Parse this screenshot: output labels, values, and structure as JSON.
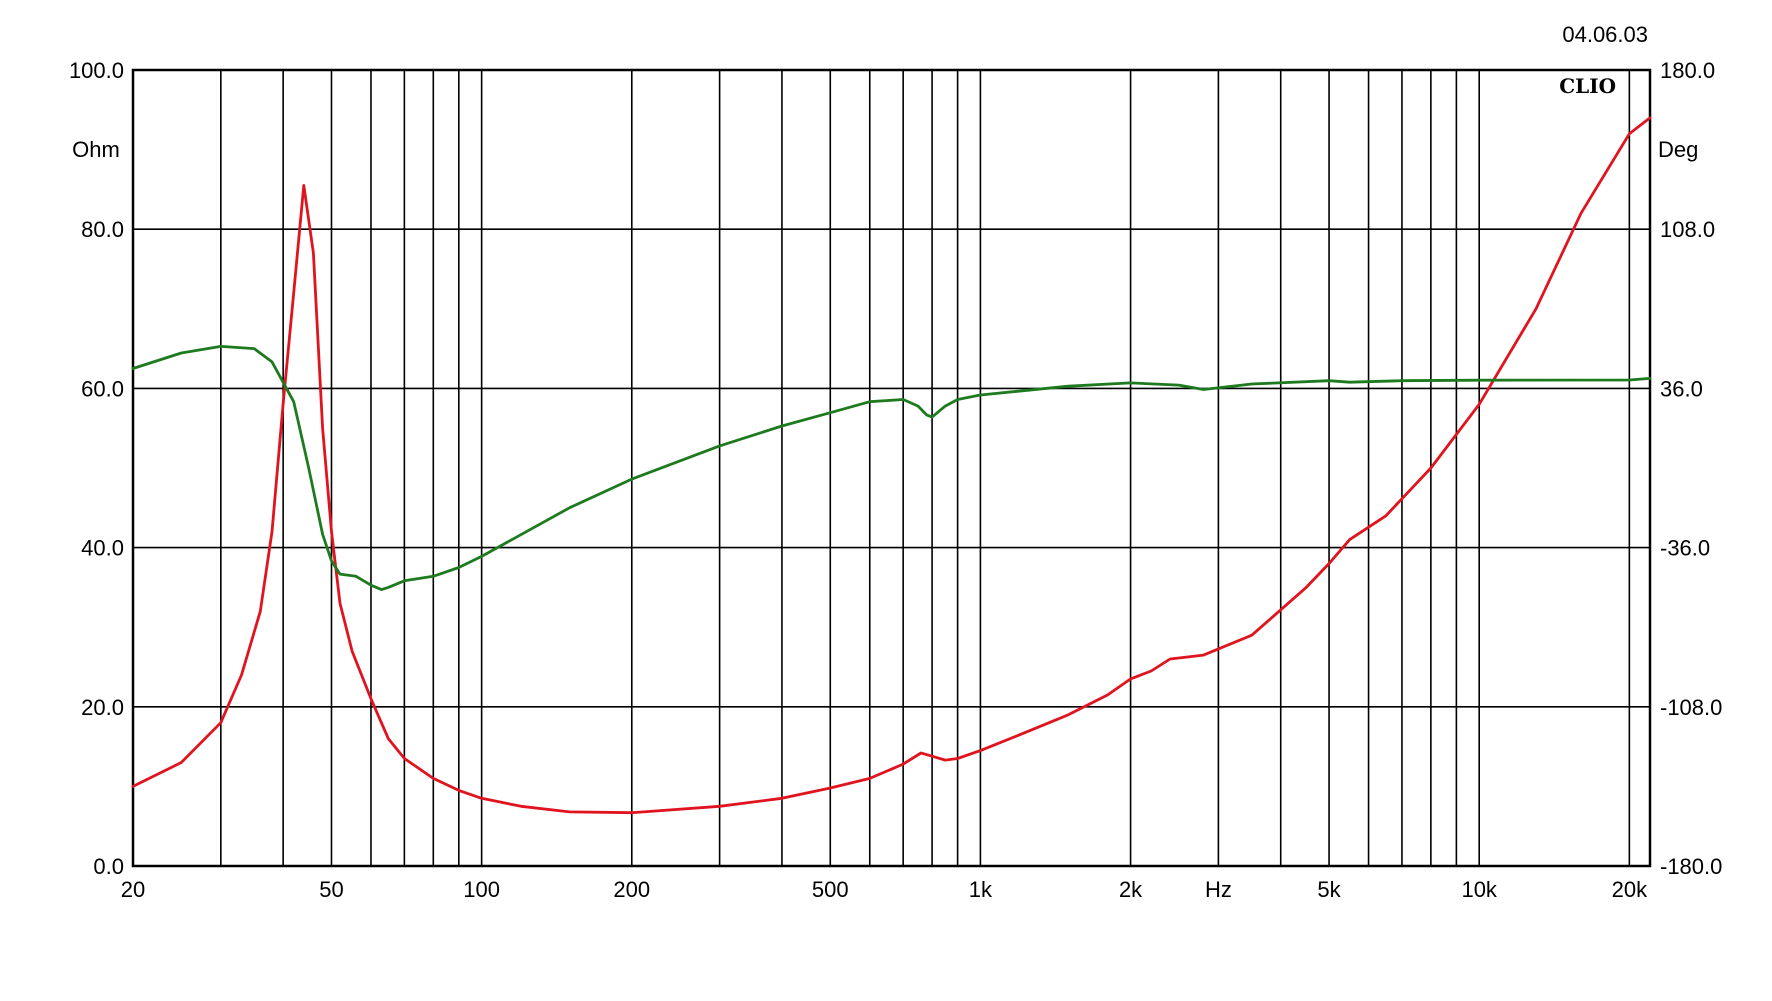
{
  "date": "04.06.03",
  "brand": "CLIO",
  "chart_data": {
    "type": "line",
    "xlabel": "Hz",
    "ylabel_left": "Ohm",
    "ylabel_right": "Deg",
    "x_scale": "log",
    "xlim": [
      20,
      22000
    ],
    "ylim_left": [
      0,
      100
    ],
    "ylim_right": [
      -180,
      180
    ],
    "grid": true,
    "x_ticks": [
      {
        "value": 20,
        "label": "20"
      },
      {
        "value": 50,
        "label": "50"
      },
      {
        "value": 100,
        "label": "100"
      },
      {
        "value": 200,
        "label": "200"
      },
      {
        "value": 500,
        "label": "500"
      },
      {
        "value": 1000,
        "label": "1k"
      },
      {
        "value": 2000,
        "label": "2k"
      },
      {
        "value": 5000,
        "label": "5k"
      },
      {
        "value": 10000,
        "label": "10k"
      },
      {
        "value": 20000,
        "label": "20k"
      }
    ],
    "x_grid": [
      20,
      30,
      40,
      50,
      60,
      70,
      80,
      90,
      100,
      200,
      300,
      400,
      500,
      600,
      700,
      800,
      900,
      1000,
      2000,
      3000,
      4000,
      5000,
      6000,
      7000,
      8000,
      9000,
      10000,
      20000
    ],
    "x_unit_tick": 3000,
    "y_left_ticks": [
      {
        "value": 0,
        "label": "0.0"
      },
      {
        "value": 20,
        "label": "20.0"
      },
      {
        "value": 40,
        "label": "40.0"
      },
      {
        "value": 60,
        "label": "60.0"
      },
      {
        "value": 80,
        "label": "80.0"
      },
      {
        "value": 100,
        "label": "100.0"
      }
    ],
    "y_right_ticks": [
      {
        "value": -180,
        "label": "-180.0"
      },
      {
        "value": -108,
        "label": "-108.0"
      },
      {
        "value": -36,
        "label": "-36.0"
      },
      {
        "value": 36,
        "label": "36.0"
      },
      {
        "value": 108,
        "label": "108.0"
      },
      {
        "value": 180,
        "label": "180.0"
      }
    ],
    "series": [
      {
        "axis": "left",
        "color": "#e0141e",
        "points": [
          [
            20,
            10
          ],
          [
            25,
            13
          ],
          [
            30,
            18
          ],
          [
            33,
            24
          ],
          [
            36,
            32
          ],
          [
            38,
            42
          ],
          [
            40,
            58
          ],
          [
            42,
            72
          ],
          [
            44,
            85.5
          ],
          [
            46,
            77
          ],
          [
            48,
            55
          ],
          [
            50,
            42
          ],
          [
            52,
            33
          ],
          [
            55,
            27
          ],
          [
            60,
            21
          ],
          [
            65,
            16
          ],
          [
            70,
            13.5
          ],
          [
            80,
            11
          ],
          [
            90,
            9.5
          ],
          [
            100,
            8.5
          ],
          [
            120,
            7.5
          ],
          [
            150,
            6.8
          ],
          [
            200,
            6.7
          ],
          [
            300,
            7.5
          ],
          [
            400,
            8.5
          ],
          [
            500,
            9.8
          ],
          [
            600,
            11
          ],
          [
            700,
            12.8
          ],
          [
            760,
            14.2
          ],
          [
            800,
            13.8
          ],
          [
            850,
            13.3
          ],
          [
            900,
            13.5
          ],
          [
            1000,
            14.5
          ],
          [
            1200,
            16.5
          ],
          [
            1500,
            19
          ],
          [
            1800,
            21.5
          ],
          [
            2000,
            23.5
          ],
          [
            2200,
            24.5
          ],
          [
            2400,
            26
          ],
          [
            2800,
            26.5
          ],
          [
            3500,
            29
          ],
          [
            4500,
            35
          ],
          [
            5000,
            38
          ],
          [
            5500,
            41
          ],
          [
            6500,
            44
          ],
          [
            8000,
            50
          ],
          [
            10000,
            58
          ],
          [
            13000,
            70
          ],
          [
            16000,
            82
          ],
          [
            20000,
            92
          ],
          [
            22000,
            94
          ]
        ]
      },
      {
        "axis": "right",
        "color": "#1e7a1e",
        "points": [
          [
            20,
            45
          ],
          [
            25,
            52
          ],
          [
            30,
            55
          ],
          [
            35,
            54
          ],
          [
            38,
            48
          ],
          [
            42,
            30
          ],
          [
            45,
            0
          ],
          [
            48,
            -30
          ],
          [
            50,
            -42
          ],
          [
            52,
            -48
          ],
          [
            56,
            -49
          ],
          [
            60,
            -53
          ],
          [
            63,
            -55
          ],
          [
            65,
            -54
          ],
          [
            70,
            -51
          ],
          [
            80,
            -49
          ],
          [
            90,
            -45
          ],
          [
            100,
            -40
          ],
          [
            150,
            -18
          ],
          [
            200,
            -5
          ],
          [
            300,
            10
          ],
          [
            400,
            19
          ],
          [
            500,
            25
          ],
          [
            600,
            30
          ],
          [
            700,
            31
          ],
          [
            750,
            28
          ],
          [
            780,
            24
          ],
          [
            800,
            23
          ],
          [
            850,
            28
          ],
          [
            900,
            31
          ],
          [
            1000,
            33
          ],
          [
            1500,
            37
          ],
          [
            2000,
            38.5
          ],
          [
            2500,
            37.5
          ],
          [
            2800,
            35.5
          ],
          [
            3500,
            38
          ],
          [
            5000,
            39.5
          ],
          [
            5500,
            38.8
          ],
          [
            7000,
            39.5
          ],
          [
            10000,
            39.7
          ],
          [
            20000,
            39.8
          ],
          [
            22000,
            40.5
          ]
        ]
      }
    ]
  }
}
